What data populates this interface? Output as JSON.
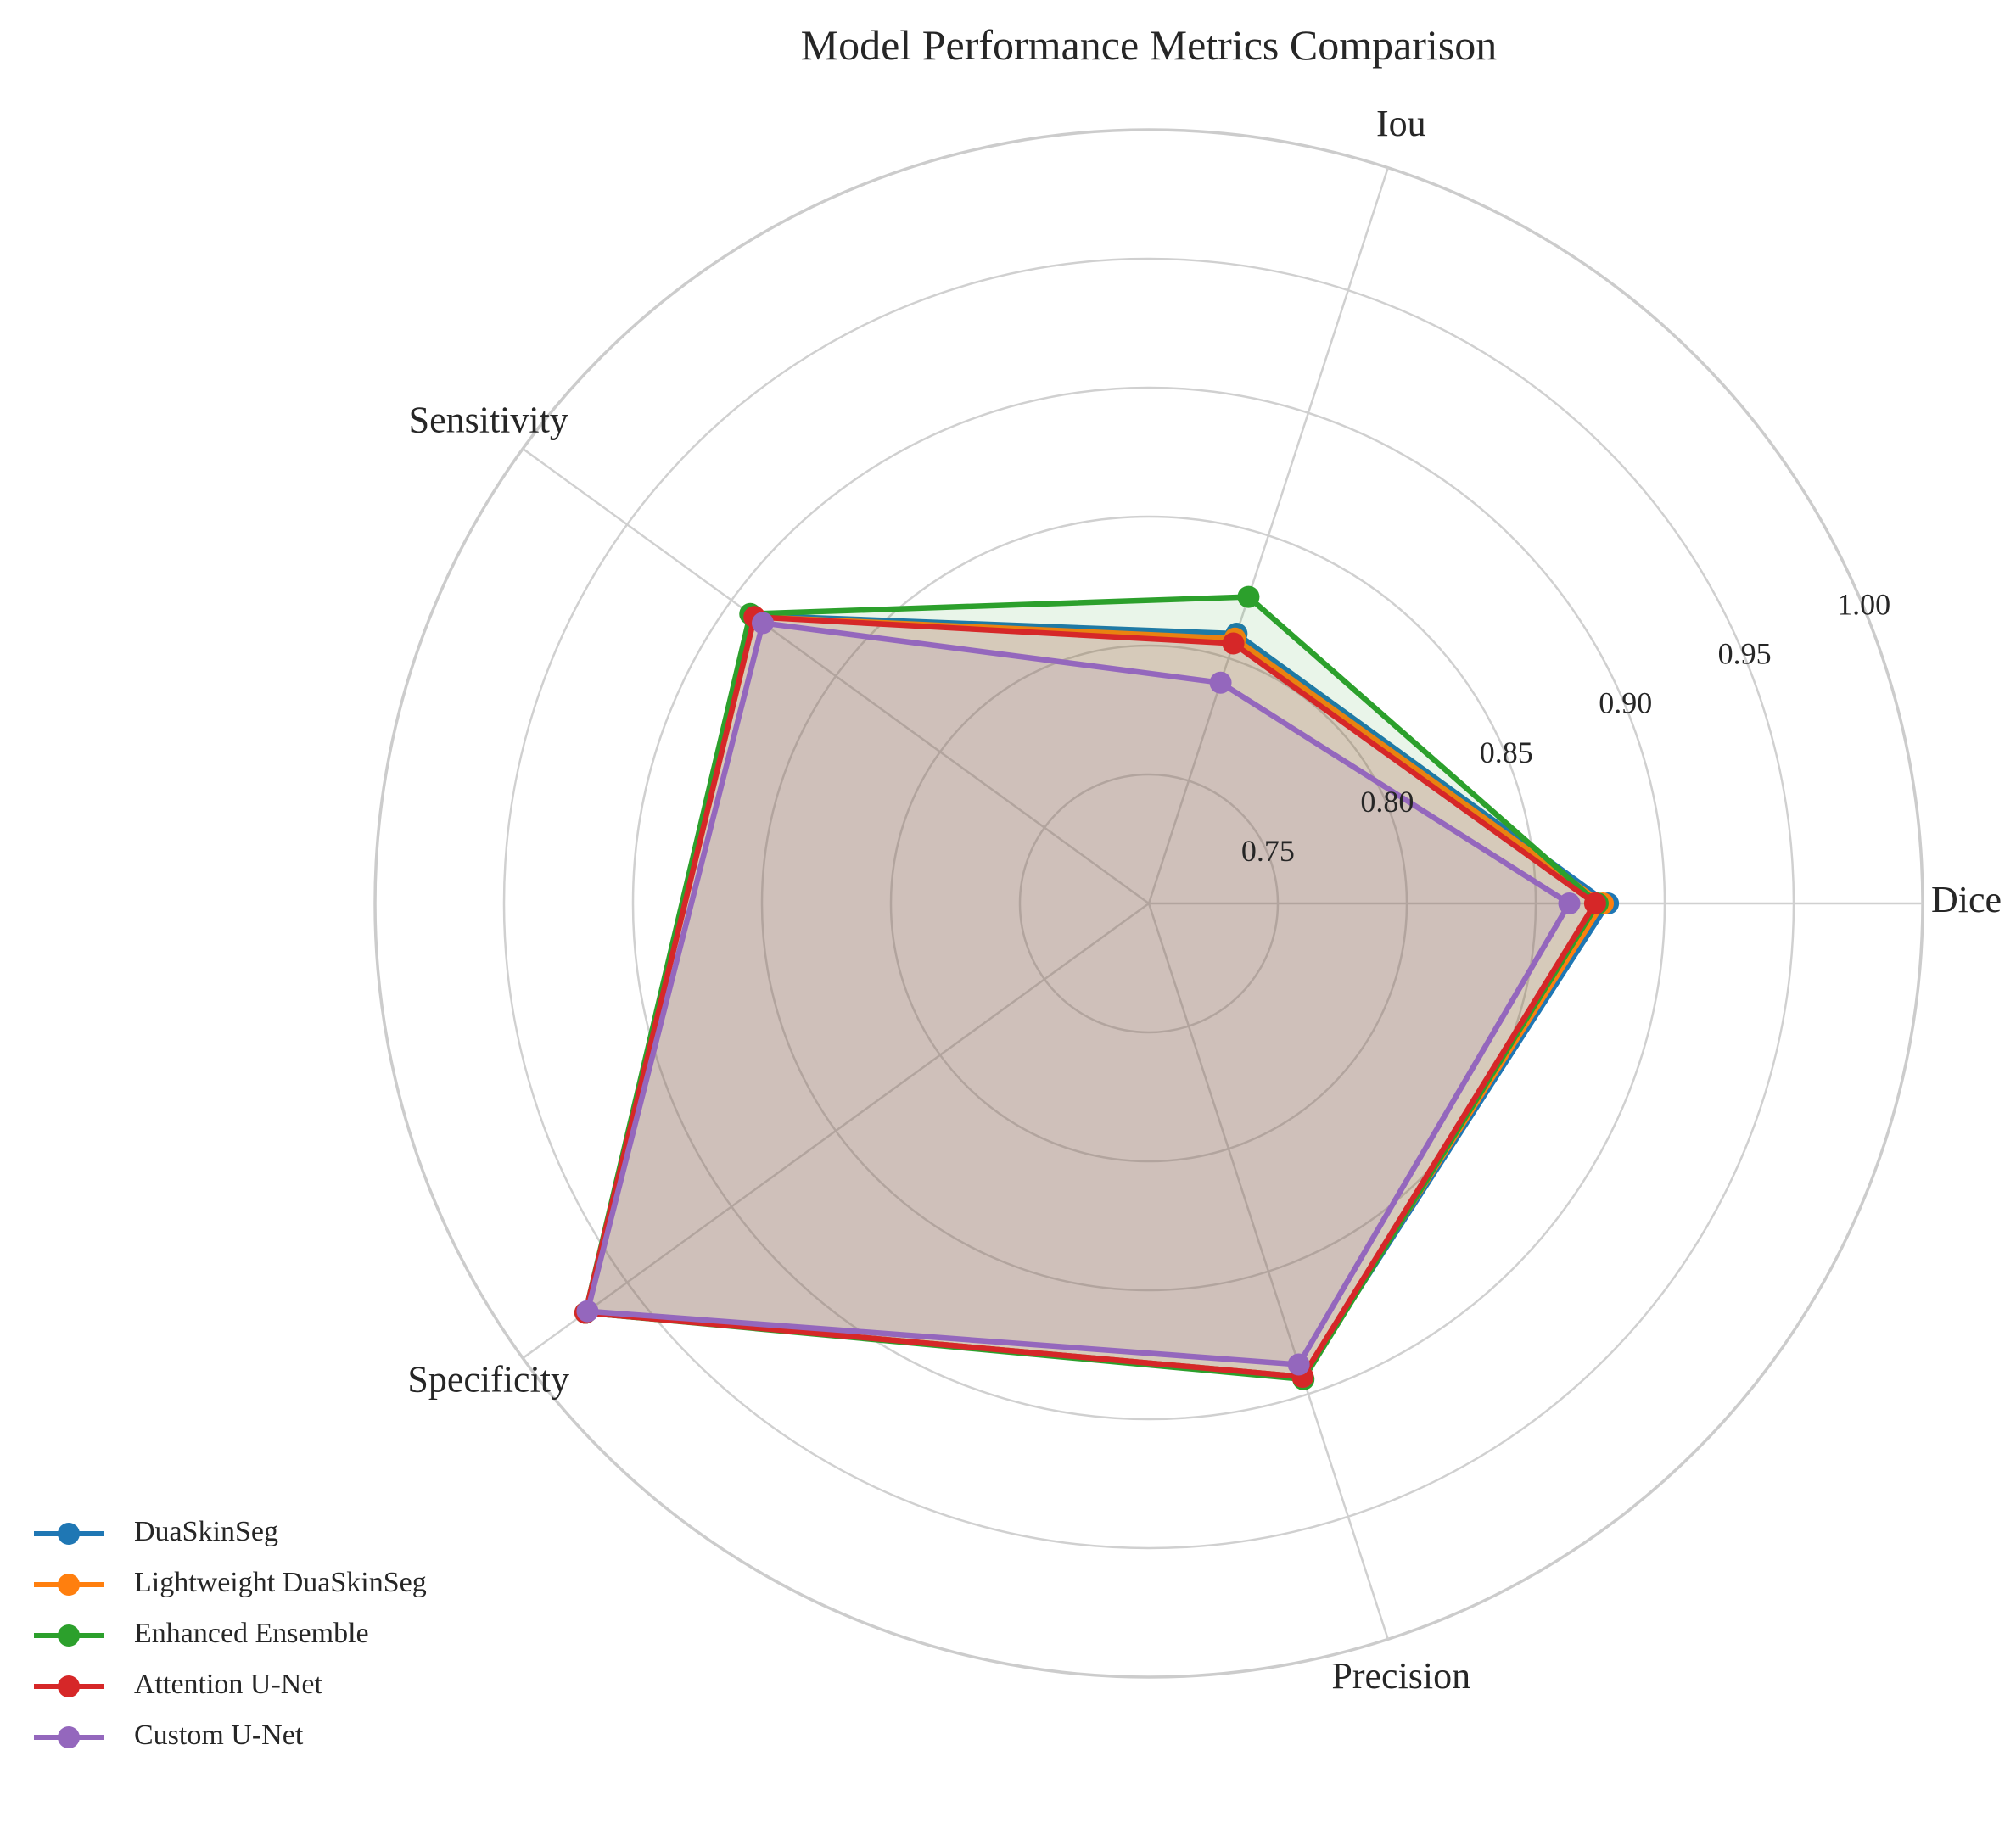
{
  "chart_data": {
    "type": "radar",
    "title": "Model Performance Metrics Comparison",
    "axes": [
      "Dice",
      "Iou",
      "Sensitivity",
      "Specificity",
      "Precision"
    ],
    "r_range": [
      0.7,
      1.0
    ],
    "r_ticks": [
      0.75,
      0.8,
      0.85,
      0.9,
      0.95,
      1.0
    ],
    "r_tick_labels": [
      "0.75",
      "0.80",
      "0.85",
      "0.90",
      "0.95",
      "1.00"
    ],
    "grid": true,
    "legend_position": "lower-left",
    "series": [
      {
        "name": "DuaSkinSeg",
        "color": "#1f77b4",
        "values": [
          0.878,
          0.81,
          0.89,
          0.97,
          0.893
        ]
      },
      {
        "name": "Lightweight DuaSkinSeg",
        "color": "#ff7f0e",
        "values": [
          0.876,
          0.808,
          0.889,
          0.97,
          0.893
        ]
      },
      {
        "name": "Enhanced Ensemble",
        "color": "#2ca02c",
        "values": [
          0.874,
          0.825,
          0.891,
          0.97,
          0.894
        ]
      },
      {
        "name": "Attention U-Net",
        "color": "#d62728",
        "values": [
          0.873,
          0.806,
          0.889,
          0.97,
          0.893
        ]
      },
      {
        "name": "Custom U-Net",
        "color": "#9467bd",
        "values": [
          0.863,
          0.79,
          0.885,
          0.969,
          0.888
        ]
      }
    ]
  }
}
